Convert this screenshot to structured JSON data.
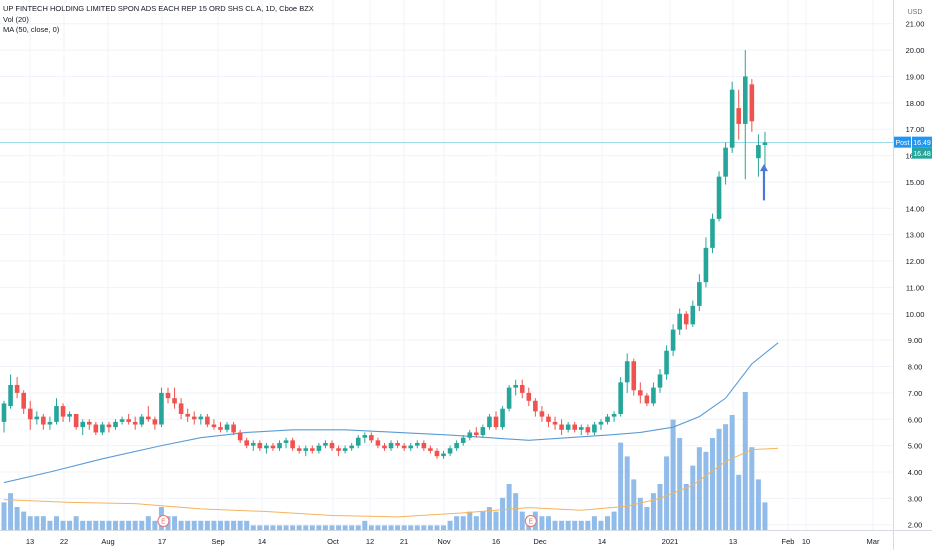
{
  "legend": {
    "symbol_title": "UP FINTECH HOLDING LIMITED SPON ADS EACH REP 15 ORD SHS CL A, 1D, Cboe BZX",
    "volume_label": "Vol (20)",
    "ma_label": "MA (50, close, 0)"
  },
  "price_axis": {
    "currency": "USD",
    "post_tag": "Post",
    "post_price": "16.49",
    "last_price": "16.48"
  },
  "colors": {
    "up": "#26a69a",
    "down": "#ef5350",
    "volume": "#7eb0e6",
    "ma": "#5b9bd5",
    "vol_ma": "#f5b35c",
    "arrow": "#4a78d6",
    "grid": "#f0f3fa",
    "axis_text": "#131722"
  },
  "chart_data": {
    "type": "candlestick",
    "title": "UP FINTECH HOLDING LIMITED SPON ADS EACH REP 15 ORD SHS CL A, 1D, Cboe BZX",
    "interval": "1D",
    "y_axis": {
      "ticks": [
        "2.00",
        "3.00",
        "4.00",
        "5.00",
        "6.00",
        "7.00",
        "8.00",
        "9.00",
        "10.00",
        "11.00",
        "12.00",
        "13.00",
        "14.00",
        "15.00",
        "16.00",
        "17.00",
        "18.00",
        "19.00",
        "20.00",
        "21.00"
      ],
      "range": [
        1.8,
        21.9
      ]
    },
    "x_axis": {
      "tick_labels": [
        "13",
        "22",
        "Aug",
        "17",
        "Sep",
        "14",
        "Oct",
        "12",
        "21",
        "Nov",
        "16",
        "Dec",
        "14",
        "2021",
        "13",
        "Feb",
        "10",
        "Mar"
      ]
    },
    "candles": [
      [
        5.9,
        6.7,
        5.5,
        6.6
      ],
      [
        6.5,
        7.7,
        6.4,
        7.3
      ],
      [
        7.3,
        7.6,
        6.8,
        7.0
      ],
      [
        7.0,
        7.1,
        6.2,
        6.4
      ],
      [
        6.4,
        6.7,
        5.6,
        6.0
      ],
      [
        6.0,
        6.3,
        5.8,
        6.1
      ],
      [
        6.1,
        6.2,
        5.6,
        5.8
      ],
      [
        5.8,
        6.1,
        5.6,
        5.9
      ],
      [
        5.9,
        6.8,
        5.8,
        6.5
      ],
      [
        6.5,
        6.6,
        5.9,
        6.1
      ],
      [
        6.1,
        6.3,
        5.9,
        6.2
      ],
      [
        6.2,
        6.2,
        5.6,
        5.7
      ],
      [
        5.7,
        6.0,
        5.4,
        5.9
      ],
      [
        5.9,
        6.0,
        5.6,
        5.8
      ],
      [
        5.8,
        5.9,
        5.4,
        5.5
      ],
      [
        5.5,
        5.9,
        5.4,
        5.8
      ],
      [
        5.8,
        5.9,
        5.5,
        5.7
      ],
      [
        5.7,
        6.0,
        5.6,
        5.9
      ],
      [
        5.9,
        6.1,
        5.8,
        6.0
      ],
      [
        6.0,
        6.2,
        5.8,
        5.9
      ],
      [
        5.9,
        6.1,
        5.6,
        5.8
      ],
      [
        5.8,
        6.2,
        5.7,
        6.1
      ],
      [
        6.1,
        6.5,
        5.9,
        6.0
      ],
      [
        6.0,
        6.1,
        5.6,
        5.8
      ],
      [
        5.8,
        7.2,
        5.7,
        7.0
      ],
      [
        7.0,
        7.2,
        6.6,
        6.8
      ],
      [
        6.8,
        7.2,
        6.4,
        6.6
      ],
      [
        6.6,
        6.8,
        6.0,
        6.2
      ],
      [
        6.2,
        6.4,
        5.9,
        6.1
      ],
      [
        6.1,
        6.3,
        5.8,
        6.0
      ],
      [
        6.0,
        6.2,
        5.8,
        6.1
      ],
      [
        6.1,
        6.2,
        5.7,
        5.8
      ],
      [
        5.8,
        6.0,
        5.6,
        5.7
      ],
      [
        5.7,
        5.9,
        5.5,
        5.6
      ],
      [
        5.6,
        5.9,
        5.5,
        5.8
      ],
      [
        5.8,
        5.9,
        5.4,
        5.5
      ],
      [
        5.5,
        5.6,
        5.1,
        5.2
      ],
      [
        5.2,
        5.3,
        4.9,
        5.0
      ],
      [
        5.0,
        5.2,
        4.8,
        5.1
      ],
      [
        5.1,
        5.2,
        4.8,
        4.9
      ],
      [
        4.9,
        5.1,
        4.7,
        5.0
      ],
      [
        5.0,
        5.1,
        4.8,
        4.9
      ],
      [
        4.9,
        5.2,
        4.8,
        5.1
      ],
      [
        5.1,
        5.3,
        4.9,
        5.2
      ],
      [
        5.2,
        5.3,
        4.8,
        4.9
      ],
      [
        4.9,
        5.0,
        4.7,
        4.8
      ],
      [
        4.8,
        5.0,
        4.6,
        4.9
      ],
      [
        4.9,
        5.0,
        4.7,
        4.8
      ],
      [
        4.8,
        5.1,
        4.7,
        5.0
      ],
      [
        5.0,
        5.2,
        4.9,
        5.1
      ],
      [
        5.1,
        5.2,
        4.8,
        4.9
      ],
      [
        4.9,
        5.0,
        4.6,
        4.8
      ],
      [
        4.8,
        5.0,
        4.7,
        4.9
      ],
      [
        4.9,
        5.1,
        4.8,
        5.0
      ],
      [
        5.0,
        5.4,
        4.9,
        5.3
      ],
      [
        5.3,
        5.5,
        5.1,
        5.4
      ],
      [
        5.4,
        5.5,
        5.1,
        5.2
      ],
      [
        5.2,
        5.3,
        4.9,
        5.0
      ],
      [
        5.0,
        5.1,
        4.8,
        4.9
      ],
      [
        4.9,
        5.2,
        4.8,
        5.1
      ],
      [
        5.1,
        5.2,
        4.9,
        5.0
      ],
      [
        5.0,
        5.1,
        4.8,
        4.9
      ],
      [
        4.9,
        5.1,
        4.8,
        5.0
      ],
      [
        5.0,
        5.2,
        4.9,
        5.1
      ],
      [
        5.1,
        5.2,
        4.8,
        4.9
      ],
      [
        4.9,
        5.0,
        4.7,
        4.8
      ],
      [
        4.8,
        4.9,
        4.5,
        4.6
      ],
      [
        4.6,
        4.8,
        4.5,
        4.7
      ],
      [
        4.7,
        5.0,
        4.6,
        4.9
      ],
      [
        4.9,
        5.2,
        4.8,
        5.1
      ],
      [
        5.1,
        5.4,
        5.0,
        5.3
      ],
      [
        5.3,
        5.6,
        5.2,
        5.5
      ],
      [
        5.5,
        5.7,
        5.3,
        5.4
      ],
      [
        5.4,
        5.8,
        5.3,
        5.7
      ],
      [
        5.7,
        6.2,
        5.6,
        6.1
      ],
      [
        6.1,
        6.3,
        5.6,
        5.7
      ],
      [
        5.7,
        6.5,
        5.6,
        6.4
      ],
      [
        6.4,
        7.3,
        6.3,
        7.2
      ],
      [
        7.2,
        7.5,
        6.9,
        7.3
      ],
      [
        7.3,
        7.5,
        6.8,
        7.0
      ],
      [
        7.0,
        7.2,
        6.5,
        6.7
      ],
      [
        6.7,
        6.8,
        6.1,
        6.3
      ],
      [
        6.3,
        6.5,
        5.9,
        6.1
      ],
      [
        6.1,
        6.2,
        5.7,
        5.9
      ],
      [
        5.9,
        6.1,
        5.6,
        5.8
      ],
      [
        5.8,
        6.0,
        5.4,
        5.6
      ],
      [
        5.6,
        5.9,
        5.5,
        5.8
      ],
      [
        5.8,
        5.9,
        5.5,
        5.6
      ],
      [
        5.6,
        5.8,
        5.4,
        5.7
      ],
      [
        5.7,
        5.8,
        5.4,
        5.5
      ],
      [
        5.5,
        5.9,
        5.4,
        5.8
      ],
      [
        5.8,
        6.0,
        5.6,
        5.9
      ],
      [
        5.9,
        6.2,
        5.8,
        6.1
      ],
      [
        6.1,
        6.3,
        5.9,
        6.2
      ],
      [
        6.2,
        7.6,
        6.1,
        7.4
      ],
      [
        7.4,
        8.5,
        7.0,
        8.2
      ],
      [
        8.2,
        8.3,
        6.9,
        7.1
      ],
      [
        7.1,
        7.4,
        6.6,
        6.9
      ],
      [
        6.9,
        7.0,
        6.5,
        6.6
      ],
      [
        6.6,
        7.4,
        6.5,
        7.2
      ],
      [
        7.2,
        7.9,
        7.0,
        7.7
      ],
      [
        7.7,
        8.8,
        7.5,
        8.6
      ],
      [
        8.6,
        9.6,
        8.4,
        9.4
      ],
      [
        9.4,
        10.2,
        9.2,
        10.0
      ],
      [
        10.0,
        10.1,
        9.4,
        9.6
      ],
      [
        9.6,
        10.5,
        9.5,
        10.3
      ],
      [
        10.3,
        11.5,
        10.1,
        11.2
      ],
      [
        11.2,
        12.9,
        11.0,
        12.5
      ],
      [
        12.5,
        13.8,
        12.3,
        13.6
      ],
      [
        13.6,
        15.4,
        13.5,
        15.2
      ],
      [
        15.2,
        16.5,
        14.9,
        16.3
      ],
      [
        16.3,
        18.8,
        16.1,
        18.5
      ],
      [
        17.8,
        18.5,
        16.6,
        17.2
      ],
      [
        17.2,
        20.0,
        15.1,
        19.0
      ],
      [
        18.7,
        18.9,
        16.9,
        17.3
      ],
      [
        15.9,
        16.8,
        15.2,
        16.4
      ],
      [
        16.4,
        16.9,
        15.5,
        16.5
      ]
    ],
    "volume": [
      [
        6,
        "up"
      ],
      [
        8,
        "up"
      ],
      [
        5,
        "down"
      ],
      [
        4,
        "down"
      ],
      [
        3,
        "down"
      ],
      [
        3,
        "up"
      ],
      [
        3,
        "down"
      ],
      [
        2,
        "up"
      ],
      [
        3,
        "up"
      ],
      [
        2,
        "down"
      ],
      [
        2,
        "up"
      ],
      [
        3,
        "down"
      ],
      [
        2,
        "up"
      ],
      [
        2,
        "down"
      ],
      [
        2,
        "down"
      ],
      [
        2,
        "up"
      ],
      [
        2,
        "down"
      ],
      [
        2,
        "up"
      ],
      [
        2,
        "up"
      ],
      [
        2,
        "down"
      ],
      [
        2,
        "down"
      ],
      [
        2,
        "up"
      ],
      [
        3,
        "down"
      ],
      [
        2,
        "down"
      ],
      [
        5,
        "up"
      ],
      [
        3,
        "down"
      ],
      [
        3,
        "down"
      ],
      [
        2,
        "down"
      ],
      [
        2,
        "down"
      ],
      [
        2,
        "down"
      ],
      [
        2,
        "up"
      ],
      [
        2,
        "down"
      ],
      [
        2,
        "down"
      ],
      [
        2,
        "down"
      ],
      [
        2,
        "up"
      ],
      [
        2,
        "down"
      ],
      [
        2,
        "down"
      ],
      [
        2,
        "down"
      ],
      [
        1,
        "up"
      ],
      [
        1,
        "down"
      ],
      [
        1,
        "up"
      ],
      [
        1,
        "down"
      ],
      [
        1,
        "up"
      ],
      [
        1,
        "up"
      ],
      [
        1,
        "down"
      ],
      [
        1,
        "down"
      ],
      [
        1,
        "up"
      ],
      [
        1,
        "down"
      ],
      [
        1,
        "up"
      ],
      [
        1,
        "up"
      ],
      [
        1,
        "down"
      ],
      [
        1,
        "down"
      ],
      [
        1,
        "up"
      ],
      [
        1,
        "up"
      ],
      [
        1,
        "up"
      ],
      [
        2,
        "up"
      ],
      [
        1,
        "down"
      ],
      [
        1,
        "down"
      ],
      [
        1,
        "down"
      ],
      [
        1,
        "up"
      ],
      [
        1,
        "down"
      ],
      [
        1,
        "down"
      ],
      [
        1,
        "up"
      ],
      [
        1,
        "up"
      ],
      [
        1,
        "down"
      ],
      [
        1,
        "down"
      ],
      [
        1,
        "down"
      ],
      [
        1,
        "up"
      ],
      [
        2,
        "up"
      ],
      [
        3,
        "up"
      ],
      [
        3,
        "up"
      ],
      [
        4,
        "up"
      ],
      [
        3,
        "down"
      ],
      [
        4,
        "up"
      ],
      [
        5,
        "up"
      ],
      [
        4,
        "down"
      ],
      [
        7,
        "up"
      ],
      [
        10,
        "up"
      ],
      [
        8,
        "up"
      ],
      [
        4,
        "down"
      ],
      [
        3,
        "down"
      ],
      [
        4,
        "down"
      ],
      [
        3,
        "down"
      ],
      [
        3,
        "down"
      ],
      [
        2,
        "down"
      ],
      [
        2,
        "down"
      ],
      [
        2,
        "up"
      ],
      [
        2,
        "down"
      ],
      [
        2,
        "up"
      ],
      [
        2,
        "down"
      ],
      [
        3,
        "up"
      ],
      [
        2,
        "up"
      ],
      [
        3,
        "up"
      ],
      [
        4,
        "up"
      ],
      [
        19,
        "up"
      ],
      [
        16,
        "up"
      ],
      [
        11,
        "down"
      ],
      [
        7,
        "down"
      ],
      [
        5,
        "down"
      ],
      [
        8,
        "up"
      ],
      [
        10,
        "up"
      ],
      [
        16,
        "up"
      ],
      [
        24,
        "up"
      ],
      [
        20,
        "up"
      ],
      [
        10,
        "down"
      ],
      [
        14,
        "up"
      ],
      [
        18,
        "up"
      ],
      [
        17,
        "up"
      ],
      [
        20,
        "up"
      ],
      [
        22,
        "up"
      ],
      [
        23,
        "up"
      ],
      [
        25,
        "up"
      ],
      [
        12,
        "down"
      ],
      [
        30,
        "up"
      ],
      [
        18,
        "down"
      ],
      [
        11,
        "down"
      ],
      [
        6,
        "up"
      ]
    ],
    "moving_average_50": [
      [
        0,
        3.6
      ],
      [
        7,
        4.0
      ],
      [
        15,
        4.5
      ],
      [
        24,
        5.0
      ],
      [
        30,
        5.3
      ],
      [
        37,
        5.5
      ],
      [
        44,
        5.6
      ],
      [
        52,
        5.6
      ],
      [
        60,
        5.5
      ],
      [
        68,
        5.4
      ],
      [
        74,
        5.3
      ],
      [
        80,
        5.2
      ],
      [
        86,
        5.3
      ],
      [
        92,
        5.4
      ],
      [
        97,
        5.5
      ],
      [
        102,
        5.7
      ],
      [
        106,
        6.1
      ],
      [
        110,
        6.8
      ],
      [
        114,
        8.1
      ],
      [
        118,
        8.9
      ]
    ],
    "volume_ma_20": [
      [
        0,
        2.95
      ],
      [
        10,
        2.85
      ],
      [
        20,
        2.8
      ],
      [
        30,
        2.6
      ],
      [
        40,
        2.5
      ],
      [
        50,
        2.35
      ],
      [
        60,
        2.3
      ],
      [
        70,
        2.45
      ],
      [
        80,
        2.65
      ],
      [
        88,
        2.55
      ],
      [
        95,
        2.7
      ],
      [
        100,
        3.0
      ],
      [
        105,
        3.5
      ],
      [
        110,
        4.4
      ],
      [
        114,
        4.85
      ],
      [
        118,
        4.9
      ]
    ],
    "earnings_markers": [
      "E",
      "E"
    ],
    "annotations": [
      "blue up-arrow below the last candle",
      "horizontal post-market price line at 16.49"
    ]
  }
}
